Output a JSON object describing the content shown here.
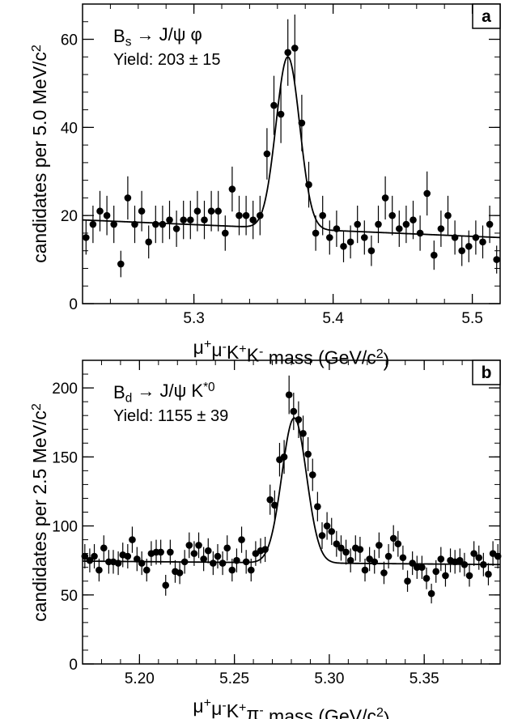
{
  "chart_data": [
    {
      "panel": "a",
      "type": "scatter",
      "annotation": {
        "parts": [
          {
            "t": "B"
          },
          {
            "t": "s",
            "sub": true
          },
          {
            "t": " → J/ψ φ"
          }
        ]
      },
      "yield_label": "Yield: 203 ± 15",
      "xlabel_parts": [
        {
          "t": "μ"
        },
        {
          "t": "+",
          "sup": true
        },
        {
          "t": "μ"
        },
        {
          "t": "-",
          "sup": true
        },
        {
          "t": "K"
        },
        {
          "t": "+",
          "sup": true
        },
        {
          "t": "K"
        },
        {
          "t": "-",
          "sup": true
        },
        {
          "t": " mass  (GeV/c"
        },
        {
          "t": "2",
          "sup": true
        },
        {
          "t": ")"
        }
      ],
      "ylabel_parts": [
        {
          "t": "candidates per 5.0 MeV/c"
        },
        {
          "t": "2",
          "sup": true
        }
      ],
      "xlim": [
        5.22,
        5.52
      ],
      "ylim": [
        0,
        68
      ],
      "xticks": [
        5.3,
        5.4,
        5.5
      ],
      "xtick_labels": [
        "5.3",
        "5.4",
        "5.5"
      ],
      "yticks": [
        0,
        20,
        40,
        60
      ],
      "ytick_labels": [
        "0",
        "20",
        "40",
        "60"
      ],
      "grid": false,
      "series": [
        {
          "kind": "data_points",
          "points": [
            [
              5.2225,
              15
            ],
            [
              5.2275,
              18
            ],
            [
              5.2325,
              21
            ],
            [
              5.2375,
              20
            ],
            [
              5.2425,
              18
            ],
            [
              5.2475,
              9
            ],
            [
              5.2525,
              24
            ],
            [
              5.2575,
              18
            ],
            [
              5.2625,
              21
            ],
            [
              5.2675,
              14
            ],
            [
              5.2725,
              18
            ],
            [
              5.2775,
              18
            ],
            [
              5.2825,
              19
            ],
            [
              5.2875,
              17
            ],
            [
              5.2925,
              19
            ],
            [
              5.2975,
              19
            ],
            [
              5.3025,
              21
            ],
            [
              5.3075,
              19
            ],
            [
              5.3125,
              21
            ],
            [
              5.3175,
              21
            ],
            [
              5.3225,
              16
            ],
            [
              5.3275,
              26
            ],
            [
              5.3325,
              20
            ],
            [
              5.3375,
              20
            ],
            [
              5.3425,
              19
            ],
            [
              5.3475,
              20
            ],
            [
              5.3525,
              34
            ],
            [
              5.3575,
              45
            ],
            [
              5.3625,
              43
            ],
            [
              5.3675,
              57
            ],
            [
              5.3725,
              58
            ],
            [
              5.3775,
              41
            ],
            [
              5.3825,
              27
            ],
            [
              5.3875,
              16
            ],
            [
              5.3925,
              20
            ],
            [
              5.3975,
              15
            ],
            [
              5.4025,
              17
            ],
            [
              5.4075,
              13
            ],
            [
              5.4125,
              14
            ],
            [
              5.4175,
              18
            ],
            [
              5.4225,
              15
            ],
            [
              5.4275,
              12
            ],
            [
              5.4325,
              18
            ],
            [
              5.4375,
              24
            ],
            [
              5.4425,
              20
            ],
            [
              5.4475,
              17
            ],
            [
              5.4525,
              18
            ],
            [
              5.4575,
              19
            ],
            [
              5.4625,
              16
            ],
            [
              5.4675,
              25
            ],
            [
              5.4725,
              11
            ],
            [
              5.4775,
              17
            ],
            [
              5.4825,
              20
            ],
            [
              5.4875,
              15
            ],
            [
              5.4925,
              12
            ],
            [
              5.4975,
              13
            ],
            [
              5.5025,
              15
            ],
            [
              5.5075,
              14
            ],
            [
              5.5125,
              18
            ],
            [
              5.5175,
              10
            ]
          ]
        },
        {
          "kind": "fit_curve",
          "background": {
            "a": 19.0,
            "b": 15.0
          },
          "peak": {
            "mu": 5.3675,
            "sigma": 0.0085,
            "amplitude": 39
          }
        }
      ]
    },
    {
      "panel": "b",
      "type": "scatter",
      "annotation": {
        "parts": [
          {
            "t": "B"
          },
          {
            "t": "d",
            "sub": true
          },
          {
            "t": " → J/ψ K"
          },
          {
            "t": "*0",
            "sup": true
          }
        ]
      },
      "yield_label": "Yield: 1155 ± 39",
      "xlabel_parts": [
        {
          "t": "μ"
        },
        {
          "t": "+",
          "sup": true
        },
        {
          "t": "μ"
        },
        {
          "t": "-",
          "sup": true
        },
        {
          "t": "K"
        },
        {
          "t": "+",
          "sup": true
        },
        {
          "t": "π"
        },
        {
          "t": "-",
          "sup": true
        },
        {
          "t": " mass  (GeV/c"
        },
        {
          "t": "2",
          "sup": true
        },
        {
          "t": ")"
        }
      ],
      "ylabel_parts": [
        {
          "t": "candidates per 2.5 MeV/c"
        },
        {
          "t": "2",
          "sup": true
        }
      ],
      "xlim": [
        5.17,
        5.39
      ],
      "ylim": [
        0,
        220
      ],
      "xticks": [
        5.2,
        5.25,
        5.3,
        5.35
      ],
      "xtick_labels": [
        "5.20",
        "5.25",
        "5.30",
        "5.35"
      ],
      "yticks": [
        0,
        50,
        100,
        150,
        200
      ],
      "ytick_labels": [
        "0",
        "50",
        "100",
        "150",
        "200"
      ],
      "grid": false,
      "series": [
        {
          "kind": "data_points",
          "points": [
            [
              5.1712,
              78
            ],
            [
              5.1738,
              75
            ],
            [
              5.1762,
              78
            ],
            [
              5.1787,
              68
            ],
            [
              5.1812,
              84
            ],
            [
              5.1838,
              74
            ],
            [
              5.1862,
              74
            ],
            [
              5.1888,
              73
            ],
            [
              5.1912,
              79
            ],
            [
              5.1938,
              78
            ],
            [
              5.1962,
              90
            ],
            [
              5.1987,
              76
            ],
            [
              5.2012,
              73
            ],
            [
              5.2038,
              68
            ],
            [
              5.2062,
              80
            ],
            [
              5.2088,
              81
            ],
            [
              5.2112,
              81
            ],
            [
              5.2138,
              57
            ],
            [
              5.2162,
              81
            ],
            [
              5.2188,
              67
            ],
            [
              5.2212,
              66
            ],
            [
              5.2238,
              74
            ],
            [
              5.2262,
              86
            ],
            [
              5.2288,
              80
            ],
            [
              5.2312,
              86
            ],
            [
              5.2338,
              76
            ],
            [
              5.2362,
              82
            ],
            [
              5.2388,
              73
            ],
            [
              5.2412,
              78
            ],
            [
              5.2438,
              73
            ],
            [
              5.2462,
              84
            ],
            [
              5.2488,
              68
            ],
            [
              5.2512,
              75
            ],
            [
              5.2538,
              90
            ],
            [
              5.2562,
              74
            ],
            [
              5.2588,
              68
            ],
            [
              5.2612,
              80
            ],
            [
              5.2638,
              82
            ],
            [
              5.2662,
              83
            ],
            [
              5.2688,
              119
            ],
            [
              5.2712,
              115
            ],
            [
              5.2738,
              148
            ],
            [
              5.2762,
              150
            ],
            [
              5.2788,
              195
            ],
            [
              5.2812,
              183
            ],
            [
              5.2838,
              177
            ],
            [
              5.2862,
              167
            ],
            [
              5.2888,
              152
            ],
            [
              5.2912,
              137
            ],
            [
              5.2938,
              114
            ],
            [
              5.2962,
              93
            ],
            [
              5.2988,
              100
            ],
            [
              5.3012,
              96
            ],
            [
              5.3038,
              87
            ],
            [
              5.3062,
              84
            ],
            [
              5.3088,
              81
            ],
            [
              5.3112,
              75
            ],
            [
              5.3138,
              84
            ],
            [
              5.3162,
              83
            ],
            [
              5.3188,
              68
            ],
            [
              5.3212,
              76
            ],
            [
              5.3238,
              74
            ],
            [
              5.3262,
              86
            ],
            [
              5.3288,
              66
            ],
            [
              5.3312,
              78
            ],
            [
              5.3338,
              91
            ],
            [
              5.3362,
              87
            ],
            [
              5.3388,
              77
            ],
            [
              5.3412,
              60
            ],
            [
              5.3438,
              73
            ],
            [
              5.3462,
              70
            ],
            [
              5.3488,
              70
            ],
            [
              5.3512,
              62
            ],
            [
              5.3538,
              51
            ],
            [
              5.3562,
              67
            ],
            [
              5.3588,
              76
            ],
            [
              5.3612,
              64
            ],
            [
              5.3638,
              75
            ],
            [
              5.3662,
              74
            ],
            [
              5.3688,
              75
            ],
            [
              5.3712,
              72
            ],
            [
              5.3738,
              64
            ],
            [
              5.3762,
              80
            ],
            [
              5.3788,
              77
            ],
            [
              5.3812,
              72
            ],
            [
              5.3838,
              65
            ],
            [
              5.3862,
              80
            ],
            [
              5.3888,
              78
            ]
          ]
        },
        {
          "kind": "fit_curve",
          "background": {
            "a": 74.5,
            "b": 72.0
          },
          "peak": {
            "mu": 5.2815,
            "sigma": 0.0065,
            "amplitude": 105
          }
        }
      ]
    }
  ]
}
